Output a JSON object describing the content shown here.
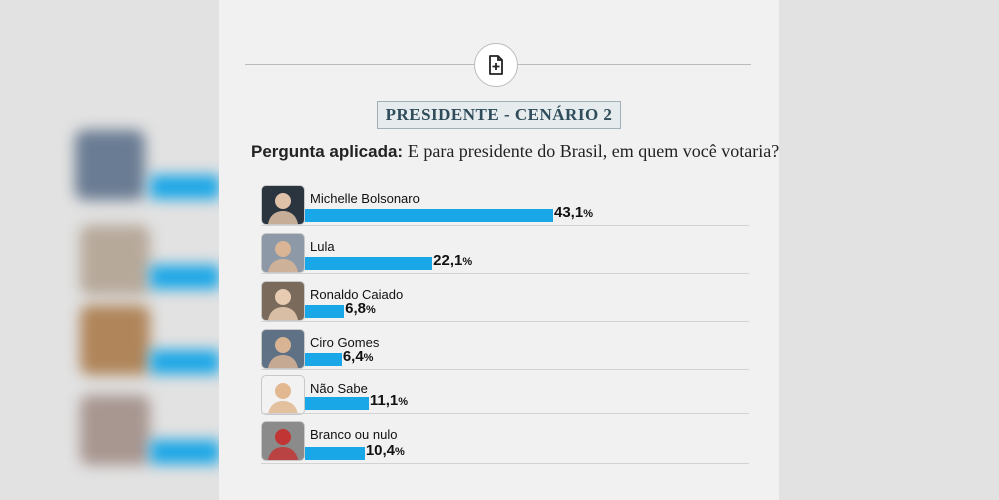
{
  "question": {
    "label": "Pergunta aplicada:",
    "text": "E para presidente do Brasil, em quem você votaria?"
  },
  "scenario_title": "PRESIDENTE - CENÁRIO 2",
  "icons": {
    "badge": "document-add-icon"
  },
  "colors": {
    "bar": "#19a7e8",
    "scenario_text": "#2f4c5a"
  },
  "chart_data": {
    "type": "bar",
    "orientation": "horizontal",
    "categories": [
      "Michelle Bolsonaro",
      "Lula",
      "Ronaldo Caiado",
      "Ciro Gomes",
      "Não Sabe",
      "Branco ou nulo"
    ],
    "values": [
      43.1,
      22.1,
      6.8,
      6.4,
      11.1,
      10.4
    ],
    "value_labels": [
      "43,1",
      "22,1",
      "6,8",
      "6,4",
      "11,1",
      "10,4"
    ],
    "unit": "%"
  }
}
